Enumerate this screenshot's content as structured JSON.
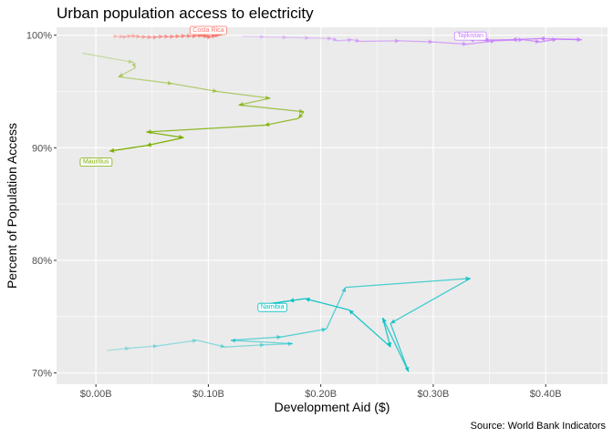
{
  "chart_data": {
    "type": "line",
    "title": "Urban population access to electricity",
    "xlabel": "Development Aid ($)",
    "ylabel": "Percent of Population Access",
    "caption": "Source: World Bank Indicators",
    "xlim": [
      -0.035,
      0.455
    ],
    "ylim": [
      69.0,
      100.7
    ],
    "x_ticks": [
      0.0,
      0.1,
      0.2,
      0.3,
      0.4
    ],
    "x_tick_labels": [
      "$0.00B",
      "$0.10B",
      "$0.20B",
      "$0.30B",
      "$0.40B"
    ],
    "y_ticks": [
      70,
      80,
      90,
      100
    ],
    "y_tick_labels": [
      "70%",
      "80%",
      "90%",
      "100%"
    ],
    "grid": true,
    "legend": "none",
    "colors": {
      "Costa Rica": "#F8766D",
      "Mauritius": "#7CAE00",
      "Namibia": "#00BFC4",
      "Tajikistan": "#C77CFF"
    },
    "series": [
      {
        "name": "Costa Rica",
        "color": "#F8766D",
        "label_at": [
          0.1,
          100.5
        ],
        "points": [
          [
            0.015,
            99.9
          ],
          [
            0.02,
            99.9
          ],
          [
            0.025,
            99.85
          ],
          [
            0.028,
            99.9
          ],
          [
            0.032,
            99.95
          ],
          [
            0.036,
            99.9
          ],
          [
            0.04,
            99.85
          ],
          [
            0.045,
            99.85
          ],
          [
            0.05,
            99.8
          ],
          [
            0.055,
            99.85
          ],
          [
            0.06,
            99.9
          ],
          [
            0.065,
            99.85
          ],
          [
            0.07,
            99.9
          ],
          [
            0.075,
            99.9
          ],
          [
            0.08,
            99.95
          ],
          [
            0.085,
            99.9
          ],
          [
            0.09,
            99.95
          ],
          [
            0.095,
            100.0
          ],
          [
            0.098,
            99.9
          ],
          [
            0.1,
            99.85
          ],
          [
            0.103,
            99.9
          ],
          [
            0.107,
            100.0
          ],
          [
            0.11,
            100.05
          ],
          [
            0.112,
            100.0
          ]
        ]
      },
      {
        "name": "Tajikistan",
        "color": "#C77CFF",
        "label_at": [
          0.333,
          100.0
        ],
        "points": [
          [
            0.13,
            99.9
          ],
          [
            0.15,
            99.85
          ],
          [
            0.17,
            99.8
          ],
          [
            0.19,
            99.75
          ],
          [
            0.21,
            99.7
          ],
          [
            0.215,
            99.5
          ],
          [
            0.228,
            99.6
          ],
          [
            0.235,
            99.45
          ],
          [
            0.27,
            99.5
          ],
          [
            0.3,
            99.4
          ],
          [
            0.33,
            99.2
          ],
          [
            0.355,
            99.5
          ],
          [
            0.38,
            99.6
          ],
          [
            0.395,
            99.4
          ],
          [
            0.41,
            99.65
          ],
          [
            0.432,
            99.6
          ],
          [
            0.395,
            99.7
          ],
          [
            0.37,
            99.6
          ],
          [
            0.345,
            99.55
          ],
          [
            0.332,
            99.6
          ]
        ]
      },
      {
        "name": "Mauritius",
        "color": "#7CAE00",
        "label_at": [
          0.0,
          88.8
        ],
        "points": [
          [
            -0.012,
            98.4
          ],
          [
            0.033,
            97.6
          ],
          [
            0.035,
            97.1
          ],
          [
            0.02,
            96.3
          ],
          [
            0.068,
            95.7
          ],
          [
            0.108,
            95.0
          ],
          [
            0.155,
            94.4
          ],
          [
            0.127,
            93.8
          ],
          [
            0.185,
            93.2
          ],
          [
            0.18,
            92.6
          ],
          [
            0.15,
            92.0
          ],
          [
            0.045,
            91.4
          ],
          [
            0.078,
            90.9
          ],
          [
            0.045,
            90.2
          ],
          [
            0.012,
            89.7
          ]
        ]
      },
      {
        "name": "Namibia",
        "color": "#00BFC4",
        "label_at": [
          0.157,
          75.9
        ],
        "points": [
          [
            0.01,
            72.0
          ],
          [
            0.03,
            72.2
          ],
          [
            0.055,
            72.4
          ],
          [
            0.09,
            72.9
          ],
          [
            0.115,
            72.3
          ],
          [
            0.15,
            72.5
          ],
          [
            0.175,
            72.6
          ],
          [
            0.12,
            72.9
          ],
          [
            0.165,
            73.2
          ],
          [
            0.205,
            73.9
          ],
          [
            0.222,
            77.6
          ],
          [
            0.333,
            78.4
          ],
          [
            0.262,
            74.4
          ],
          [
            0.278,
            70.1
          ],
          [
            0.255,
            74.9
          ],
          [
            0.262,
            72.3
          ],
          [
            0.225,
            75.6
          ],
          [
            0.186,
            76.6
          ],
          [
            0.172,
            76.4
          ],
          [
            0.144,
            76.0
          ]
        ]
      }
    ]
  }
}
